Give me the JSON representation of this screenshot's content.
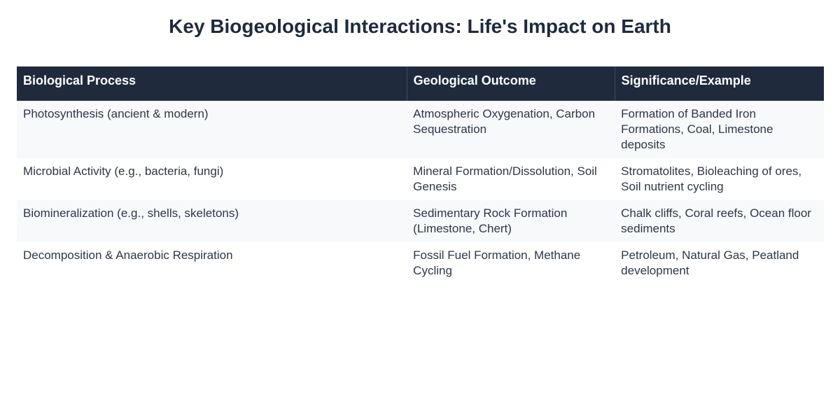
{
  "header": {
    "title": "Key Biogeological Interactions: Life's Impact on Earth"
  },
  "table": {
    "columns": [
      "Biological Process",
      "Geological Outcome",
      "Significance/Example"
    ],
    "rows": [
      [
        "Photosynthesis (ancient & modern)",
        "Atmospheric Oxygenation, Carbon Sequestration",
        "Formation of Banded Iron Formations, Coal, Limestone deposits"
      ],
      [
        "Microbial Activity (e.g., bacteria, fungi)",
        "Mineral Formation/Dissolution, Soil Genesis",
        "Stromatolites, Bioleaching of ores, Soil nutrient cycling"
      ],
      [
        "Biomineralization (e.g., shells, skeletons)",
        "Sedimentary Rock Formation (Limestone, Chert)",
        "Chalk cliffs, Coral reefs, Ocean floor sediments"
      ],
      [
        "Decomposition & Anaerobic Respiration",
        "Fossil Fuel Formation, Methane Cycling",
        "Petroleum, Natural Gas, Peatland development"
      ]
    ]
  }
}
